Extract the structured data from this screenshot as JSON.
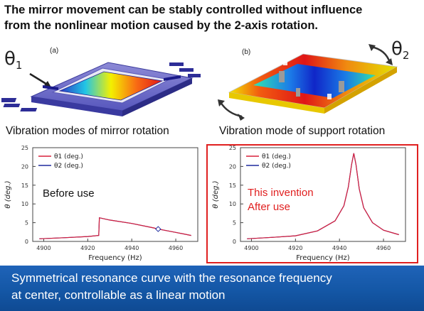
{
  "headline": {
    "line1": "The mirror movement can be stably controlled without influence",
    "line2": "from the nonlinear motion caused by the 2-axis rotation."
  },
  "figures": {
    "a": {
      "tag": "(a)",
      "theta_base": "θ",
      "theta_sub": "1",
      "caption": "Vibration modes of mirror rotation"
    },
    "b": {
      "tag": "(b)",
      "theta_base": "θ",
      "theta_sub": "2",
      "caption": "Vibration mode of support rotation"
    }
  },
  "charts_text": {
    "left_note": "Before use",
    "right_note_line1": "This invention",
    "right_note_line2": "After use"
  },
  "chart_data": [
    {
      "type": "line",
      "xlabel": "Frequency (Hz)",
      "ylabel": "θ (deg.)",
      "xlim": [
        4895,
        4970
      ],
      "ylim": [
        0,
        25
      ],
      "xticks": [
        4900,
        4920,
        4940,
        4960
      ],
      "yticks": [
        0,
        5,
        10,
        15,
        20,
        25
      ],
      "legend": "top-left",
      "series": [
        {
          "name": "θ1 (deg.)",
          "color": "#d8203c",
          "x": [
            4898,
            4910,
            4920,
            4925,
            4925.3,
            4930,
            4940,
            4950,
            4952,
            4960,
            4967
          ],
          "y": [
            0.7,
            1.0,
            1.3,
            1.6,
            6.3,
            5.7,
            4.8,
            3.6,
            3.3,
            2.4,
            1.6
          ]
        },
        {
          "name": "θ2 (deg.)",
          "color": "#1e2a9e",
          "x": [
            4898,
            4910,
            4920,
            4925,
            4925.3,
            4930,
            4940,
            4950,
            4952,
            4960,
            4967
          ],
          "y": [
            0.7,
            1.0,
            1.3,
            1.6,
            6.3,
            5.7,
            4.8,
            3.6,
            3.3,
            2.4,
            1.6
          ]
        }
      ],
      "markers": [
        {
          "x": 4952,
          "y": 3.3
        }
      ]
    },
    {
      "type": "line",
      "xlabel": "Frequency (Hz)",
      "ylabel": "θ (deg.)",
      "xlim": [
        4895,
        4970
      ],
      "ylim": [
        0,
        25
      ],
      "xticks": [
        4900,
        4920,
        4940,
        4960
      ],
      "yticks": [
        0,
        5,
        10,
        15,
        20,
        25
      ],
      "legend": "top-left",
      "series": [
        {
          "name": "θ1 (deg.)",
          "color": "#d8203c",
          "x": [
            4898,
            4910,
            4920,
            4930,
            4938,
            4942,
            4944,
            4945.5,
            4946.5,
            4947.5,
            4949,
            4951,
            4955,
            4960,
            4967
          ],
          "y": [
            0.7,
            1.1,
            1.5,
            2.8,
            5.5,
            9.5,
            14.5,
            20.5,
            23.5,
            20.5,
            14,
            9,
            5,
            3,
            1.8
          ]
        },
        {
          "name": "θ2 (deg.)",
          "color": "#1e2a9e",
          "x": [
            4898,
            4910,
            4920,
            4930,
            4938,
            4942,
            4944,
            4945.5,
            4946.5,
            4947.5,
            4949,
            4951,
            4955,
            4960,
            4967
          ],
          "y": [
            0.7,
            1.1,
            1.5,
            2.8,
            5.5,
            9.5,
            14.5,
            20.5,
            23.5,
            20.5,
            14,
            9,
            5,
            3,
            1.8
          ]
        }
      ]
    }
  ],
  "bottom_bar": {
    "line1": "Symmetrical resonance curve with the resonance frequency",
    "line2": "at center, controllable as a linear motion"
  }
}
